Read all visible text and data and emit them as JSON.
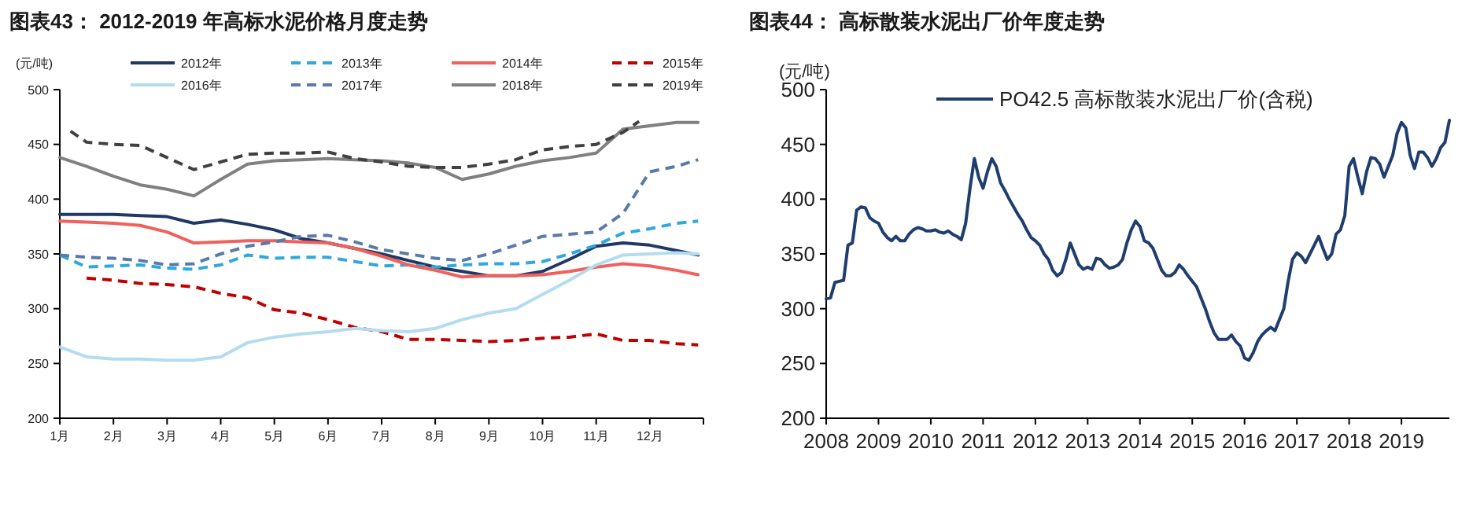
{
  "chart_data": [
    {
      "type": "line",
      "title": "图表43：  2012-2019 年高标水泥价格月度走势",
      "ylabel": "(元/吨)",
      "legend": "top",
      "x": [
        1,
        1.5,
        2,
        2.5,
        3,
        3.5,
        4,
        4.5,
        5,
        5.5,
        6,
        6.5,
        7,
        7.5,
        8,
        8.5,
        9,
        9.5,
        10,
        10.5,
        11,
        11.5,
        12,
        12.5,
        12.9
      ],
      "xlim": [
        1,
        13
      ],
      "xticks": [
        {
          "value": 1,
          "label": "1月"
        },
        {
          "value": 2,
          "label": "2月"
        },
        {
          "value": 3,
          "label": "3月"
        },
        {
          "value": 4,
          "label": "4月"
        },
        {
          "value": 5,
          "label": "5月"
        },
        {
          "value": 6,
          "label": "6月"
        },
        {
          "value": 7,
          "label": "7月"
        },
        {
          "value": 8,
          "label": "8月"
        },
        {
          "value": 9,
          "label": "9月"
        },
        {
          "value": 10,
          "label": "10月"
        },
        {
          "value": 11,
          "label": "11月"
        },
        {
          "value": 12,
          "label": "12月"
        },
        {
          "value": 13,
          "label": null
        }
      ],
      "ylim": [
        200,
        500
      ],
      "yticks": [
        200,
        250,
        300,
        350,
        400,
        450,
        500
      ],
      "series": [
        {
          "name": "2012年",
          "color": "#1f3864",
          "line_style": "solid",
          "values": [
            386,
            386,
            386,
            385,
            384,
            378,
            381,
            377,
            372,
            364,
            360,
            355,
            350,
            344,
            338,
            334,
            330,
            330,
            334,
            345,
            357,
            360,
            358,
            353,
            349
          ]
        },
        {
          "name": "2013年",
          "color": "#2ea8df",
          "line_style": "dashed",
          "values": [
            349,
            338,
            339,
            340,
            337,
            336,
            340,
            349,
            346,
            347,
            347,
            343,
            339,
            340,
            338,
            340,
            341,
            341,
            343,
            350,
            358,
            369,
            373,
            378,
            380
          ]
        },
        {
          "name": "2014年",
          "color": "#f0605d",
          "line_style": "solid",
          "values": [
            380,
            379,
            378,
            376,
            370,
            360,
            361,
            362,
            362,
            361,
            360,
            355,
            348,
            340,
            335,
            329,
            330,
            330,
            331,
            334,
            338,
            341,
            339,
            335,
            331
          ]
        },
        {
          "name": "2015年",
          "color": "#c00000",
          "line_style": "dashed",
          "values": [
            null,
            328,
            326,
            323,
            322,
            320,
            314,
            310,
            299,
            296,
            290,
            283,
            279,
            272,
            272,
            271,
            270,
            271,
            273,
            274,
            277,
            271,
            271,
            268,
            267
          ]
        },
        {
          "name": "2016年",
          "color": "#b4dcf0",
          "line_style": "solid",
          "values": [
            265,
            256,
            254,
            254,
            253,
            253,
            256,
            269,
            274,
            277,
            279,
            282,
            280,
            279,
            282,
            290,
            296,
            300,
            313,
            326,
            340,
            349,
            350,
            351,
            350
          ]
        },
        {
          "name": "2017年",
          "color": "#5a7aa8",
          "line_style": "dashed",
          "values": [
            349,
            347,
            346,
            344,
            340,
            341,
            350,
            357,
            361,
            366,
            367,
            361,
            354,
            350,
            346,
            344,
            350,
            358,
            366,
            368,
            370,
            387,
            425,
            430,
            436
          ]
        },
        {
          "name": "2018年",
          "color": "#808080",
          "line_style": "solid",
          "values": [
            438,
            430,
            421,
            413,
            409,
            403,
            418,
            432,
            435,
            436,
            437,
            436,
            435,
            433,
            429,
            418,
            423,
            430,
            435,
            438,
            442,
            464,
            467,
            470,
            470
          ]
        },
        {
          "name": "2019年",
          "color": "#404040",
          "line_style": "dashed",
          "x": [
            1.2,
            1.5,
            2,
            2.5,
            3,
            3.5,
            4,
            4.5,
            5,
            5.5,
            6,
            6.5,
            7,
            7.5,
            8,
            8.5,
            9,
            9.5,
            10,
            10.5,
            11,
            11.5,
            11.8
          ],
          "values": [
            462,
            452,
            450,
            449,
            438,
            427,
            434,
            441,
            442,
            442,
            443,
            437,
            434,
            430,
            429,
            429,
            432,
            436,
            445,
            448,
            450,
            461,
            471
          ]
        }
      ]
    },
    {
      "type": "line",
      "title": "图表44：  高标散装水泥出厂价年度走势",
      "ylabel": "(元/吨)",
      "legend": "top",
      "xlim": [
        "2008-01",
        "2019-12"
      ],
      "xticks": [
        "2008",
        "2009",
        "2010",
        "2011",
        "2012",
        "2013",
        "2014",
        "2015",
        "2016",
        "2017",
        "2018",
        "2019"
      ],
      "ylim": [
        200,
        500
      ],
      "yticks": [
        200,
        250,
        300,
        350,
        400,
        450,
        500
      ],
      "series": [
        {
          "name": "PO42.5 高标散装水泥出厂价(含税)",
          "color": "#1f3d6e",
          "line_style": "solid",
          "x": [
            "2008-01",
            "2008-02",
            "2008-03",
            "2008-04",
            "2008-05",
            "2008-06",
            "2008-07",
            "2008-08",
            "2008-09",
            "2008-10",
            "2008-11",
            "2008-12",
            "2009-01",
            "2009-02",
            "2009-03",
            "2009-04",
            "2009-05",
            "2009-06",
            "2009-07",
            "2009-08",
            "2009-09",
            "2009-10",
            "2009-11",
            "2009-12",
            "2010-01",
            "2010-02",
            "2010-03",
            "2010-04",
            "2010-05",
            "2010-06",
            "2010-07",
            "2010-08",
            "2010-09",
            "2010-10",
            "2010-11",
            "2010-12",
            "2011-01",
            "2011-02",
            "2011-03",
            "2011-04",
            "2011-05",
            "2011-06",
            "2011-07",
            "2011-08",
            "2011-09",
            "2011-10",
            "2011-11",
            "2011-12",
            "2012-01",
            "2012-02",
            "2012-03",
            "2012-04",
            "2012-05",
            "2012-06",
            "2012-07",
            "2012-08",
            "2012-09",
            "2012-10",
            "2012-11",
            "2012-12",
            "2013-01",
            "2013-02",
            "2013-03",
            "2013-04",
            "2013-05",
            "2013-06",
            "2013-07",
            "2013-08",
            "2013-09",
            "2013-10",
            "2013-11",
            "2013-12",
            "2014-01",
            "2014-02",
            "2014-03",
            "2014-04",
            "2014-05",
            "2014-06",
            "2014-07",
            "2014-08",
            "2014-09",
            "2014-10",
            "2014-11",
            "2014-12",
            "2015-01",
            "2015-02",
            "2015-03",
            "2015-04",
            "2015-05",
            "2015-06",
            "2015-07",
            "2015-08",
            "2015-09",
            "2015-10",
            "2015-11",
            "2015-12",
            "2016-01",
            "2016-02",
            "2016-03",
            "2016-04",
            "2016-05",
            "2016-06",
            "2016-07",
            "2016-08",
            "2016-09",
            "2016-10",
            "2016-11",
            "2016-12",
            "2017-01",
            "2017-02",
            "2017-03",
            "2017-04",
            "2017-05",
            "2017-06",
            "2017-07",
            "2017-08",
            "2017-09",
            "2017-10",
            "2017-11",
            "2017-12",
            "2018-01",
            "2018-02",
            "2018-03",
            "2018-04",
            "2018-05",
            "2018-06",
            "2018-07",
            "2018-08",
            "2018-09",
            "2018-10",
            "2018-11",
            "2018-12",
            "2019-01",
            "2019-02",
            "2019-03",
            "2019-04",
            "2019-05",
            "2019-06",
            "2019-07",
            "2019-08",
            "2019-09",
            "2019-10",
            "2019-11",
            "2019-12"
          ],
          "values": [
            309,
            310,
            324,
            325,
            326,
            358,
            360,
            390,
            393,
            392,
            383,
            380,
            378,
            370,
            365,
            362,
            366,
            362,
            362,
            368,
            372,
            374,
            373,
            371,
            371,
            372,
            370,
            369,
            371,
            368,
            366,
            363,
            378,
            410,
            437,
            420,
            410,
            425,
            437,
            430,
            415,
            408,
            400,
            393,
            386,
            380,
            372,
            365,
            362,
            358,
            350,
            345,
            335,
            330,
            333,
            345,
            360,
            350,
            340,
            336,
            338,
            336,
            346,
            345,
            340,
            337,
            338,
            340,
            345,
            360,
            372,
            380,
            375,
            362,
            360,
            355,
            345,
            335,
            330,
            330,
            333,
            340,
            336,
            330,
            325,
            320,
            310,
            300,
            288,
            278,
            272,
            272,
            272,
            276,
            270,
            266,
            255,
            253,
            260,
            270,
            276,
            280,
            283,
            280,
            290,
            300,
            325,
            345,
            351,
            348,
            342,
            350,
            358,
            366,
            355,
            345,
            350,
            368,
            372,
            385,
            430,
            437,
            420,
            405,
            425,
            438,
            437,
            432,
            420,
            430,
            440,
            460,
            470,
            465,
            440,
            428,
            443,
            443,
            438,
            430,
            437,
            447,
            452,
            472
          ]
        }
      ]
    }
  ]
}
